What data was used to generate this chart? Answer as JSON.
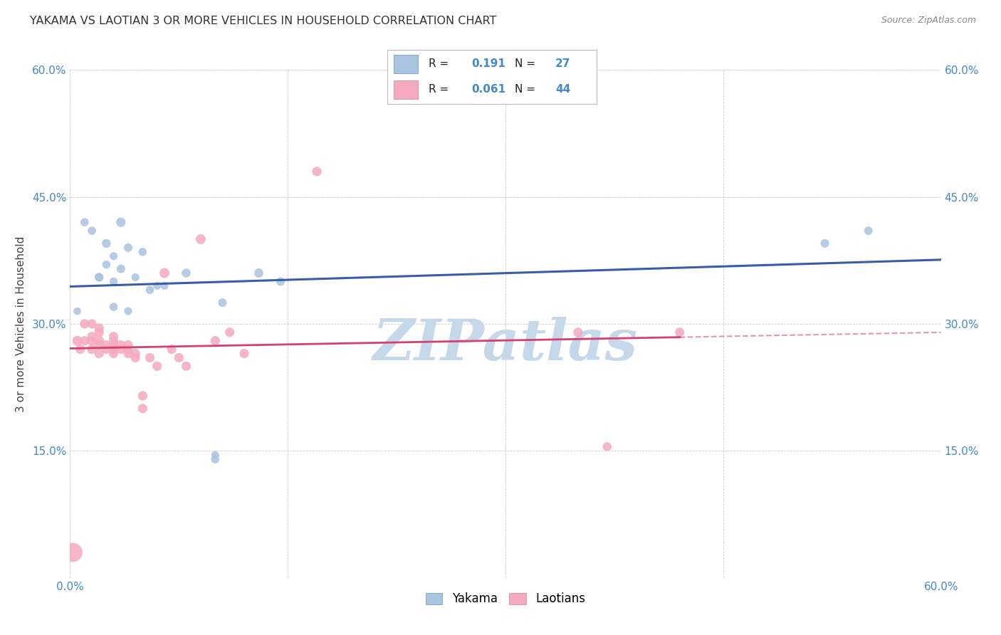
{
  "title": "YAKAMA VS LAOTIAN 3 OR MORE VEHICLES IN HOUSEHOLD CORRELATION CHART",
  "source": "Source: ZipAtlas.com",
  "ylabel": "3 or more Vehicles in Household",
  "xlim": [
    0.0,
    0.6
  ],
  "ylim": [
    0.0,
    0.6
  ],
  "xtick_vals": [
    0.0,
    0.15,
    0.3,
    0.45,
    0.6
  ],
  "ytick_vals": [
    0.0,
    0.15,
    0.3,
    0.45,
    0.6
  ],
  "xticklabels": [
    "0.0%",
    "",
    "",
    "",
    "60.0%"
  ],
  "yticklabels_left": [
    "",
    "15.0%",
    "30.0%",
    "45.0%",
    "60.0%"
  ],
  "yticklabels_right": [
    "",
    "15.0%",
    "30.0%",
    "45.0%",
    "60.0%"
  ],
  "yakama_color": "#A8C4E0",
  "laotian_color": "#F5AABF",
  "yakama_line_color": "#3B5CA8",
  "laotian_line_color": "#D44070",
  "watermark": "ZIPatlas",
  "watermark_color": "#C5D8EA",
  "legend_r_yakama": "0.191",
  "legend_n_yakama": "27",
  "legend_r_laotian": "0.061",
  "legend_n_laotian": "44",
  "tick_label_color": "#4488CC",
  "yakama_x": [
    0.005,
    0.01,
    0.015,
    0.02,
    0.02,
    0.025,
    0.025,
    0.03,
    0.03,
    0.03,
    0.035,
    0.035,
    0.04,
    0.04,
    0.045,
    0.05,
    0.055,
    0.06,
    0.065,
    0.08,
    0.1,
    0.1,
    0.105,
    0.13,
    0.145,
    0.52,
    0.55
  ],
  "yakama_y": [
    0.315,
    0.42,
    0.41,
    0.355,
    0.355,
    0.395,
    0.37,
    0.35,
    0.38,
    0.32,
    0.42,
    0.365,
    0.315,
    0.39,
    0.355,
    0.385,
    0.34,
    0.345,
    0.345,
    0.36,
    0.14,
    0.145,
    0.325,
    0.36,
    0.35,
    0.395,
    0.41
  ],
  "yakama_size": [
    50,
    60,
    60,
    70,
    60,
    70,
    60,
    60,
    55,
    60,
    80,
    65,
    55,
    65,
    55,
    60,
    60,
    55,
    55,
    70,
    60,
    55,
    65,
    75,
    65,
    65,
    65
  ],
  "laotian_x": [
    0.002,
    0.005,
    0.007,
    0.01,
    0.01,
    0.015,
    0.015,
    0.015,
    0.015,
    0.02,
    0.02,
    0.02,
    0.02,
    0.02,
    0.025,
    0.025,
    0.03,
    0.03,
    0.03,
    0.03,
    0.03,
    0.035,
    0.035,
    0.04,
    0.04,
    0.04,
    0.045,
    0.045,
    0.05,
    0.05,
    0.055,
    0.06,
    0.065,
    0.07,
    0.075,
    0.08,
    0.09,
    0.1,
    0.11,
    0.12,
    0.17,
    0.35,
    0.37,
    0.42
  ],
  "laotian_y": [
    0.03,
    0.28,
    0.27,
    0.28,
    0.3,
    0.27,
    0.28,
    0.285,
    0.3,
    0.265,
    0.275,
    0.28,
    0.29,
    0.295,
    0.27,
    0.275,
    0.265,
    0.27,
    0.275,
    0.28,
    0.285,
    0.27,
    0.275,
    0.265,
    0.27,
    0.275,
    0.26,
    0.265,
    0.2,
    0.215,
    0.26,
    0.25,
    0.36,
    0.27,
    0.26,
    0.25,
    0.4,
    0.28,
    0.29,
    0.265,
    0.48,
    0.29,
    0.155,
    0.29
  ],
  "laotian_size": [
    350,
    90,
    80,
    80,
    80,
    80,
    80,
    80,
    80,
    80,
    80,
    90,
    80,
    80,
    80,
    80,
    80,
    80,
    80,
    80,
    80,
    80,
    80,
    80,
    80,
    80,
    80,
    80,
    80,
    80,
    80,
    80,
    90,
    80,
    80,
    80,
    90,
    80,
    80,
    80,
    80,
    80,
    70,
    80
  ]
}
